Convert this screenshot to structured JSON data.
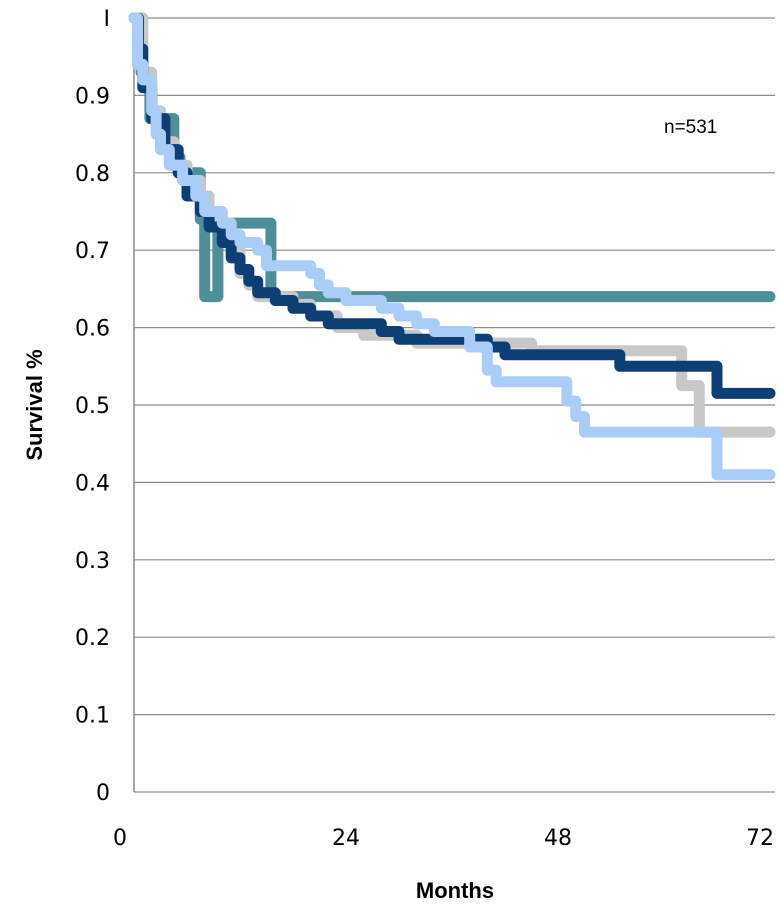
{
  "chart_data": {
    "type": "line",
    "step": true,
    "title": "",
    "xlabel": "Months",
    "ylabel": "Survival %",
    "annotation": "n=531",
    "xlim": [
      0,
      72
    ],
    "ylim": [
      0,
      1
    ],
    "xticks": [
      0,
      24,
      48,
      72
    ],
    "yticks": [
      0,
      0.1,
      0.2,
      0.3,
      0.4,
      0.5,
      0.6,
      0.7,
      0.8,
      0.9,
      1
    ],
    "ytick_labels": [
      "0",
      "0.1",
      "0.2",
      "0.3",
      "0.4",
      "0.5",
      "0.6",
      "0.7",
      "0.8",
      "0.9",
      "I"
    ],
    "xtick_labels": [
      "0",
      "24",
      "48",
      "72"
    ],
    "grid": true,
    "series": [
      {
        "color": "#4e8e99",
        "points": [
          [
            0,
            1
          ],
          [
            0.8,
            1
          ],
          [
            0.8,
            0.93
          ],
          [
            1.8,
            0.93
          ],
          [
            1.8,
            0.87
          ],
          [
            4.5,
            0.87
          ],
          [
            4.5,
            0.82
          ],
          [
            5.2,
            0.82
          ],
          [
            5.2,
            0.8
          ],
          [
            7.5,
            0.8
          ],
          [
            7.5,
            0.74
          ],
          [
            8,
            0.74
          ],
          [
            8,
            0.64
          ],
          [
            9.5,
            0.64
          ],
          [
            9.5,
            0.735
          ],
          [
            15.5,
            0.735
          ],
          [
            15.5,
            0.64
          ],
          [
            72,
            0.64
          ]
        ]
      },
      {
        "color": "#c8c8c8",
        "points": [
          [
            0,
            1
          ],
          [
            1,
            1
          ],
          [
            1,
            0.93
          ],
          [
            2,
            0.93
          ],
          [
            2,
            0.88
          ],
          [
            3,
            0.88
          ],
          [
            3,
            0.84
          ],
          [
            4.5,
            0.84
          ],
          [
            4.5,
            0.81
          ],
          [
            6,
            0.81
          ],
          [
            6,
            0.79
          ],
          [
            7.5,
            0.79
          ],
          [
            7.5,
            0.77
          ],
          [
            8.5,
            0.77
          ],
          [
            8.5,
            0.74
          ],
          [
            10,
            0.74
          ],
          [
            10,
            0.72
          ],
          [
            11,
            0.72
          ],
          [
            11,
            0.7
          ],
          [
            12,
            0.7
          ],
          [
            12,
            0.67
          ],
          [
            13,
            0.67
          ],
          [
            13,
            0.655
          ],
          [
            14,
            0.655
          ],
          [
            14,
            0.64
          ],
          [
            18,
            0.64
          ],
          [
            18,
            0.63
          ],
          [
            20,
            0.63
          ],
          [
            20,
            0.615
          ],
          [
            23,
            0.615
          ],
          [
            23,
            0.6
          ],
          [
            26,
            0.6
          ],
          [
            26,
            0.59
          ],
          [
            32,
            0.59
          ],
          [
            32,
            0.58
          ],
          [
            45,
            0.58
          ],
          [
            45,
            0.57
          ],
          [
            62,
            0.57
          ],
          [
            62,
            0.525
          ],
          [
            64,
            0.525
          ],
          [
            64,
            0.465
          ],
          [
            72,
            0.465
          ]
        ]
      },
      {
        "color": "#0d3f75",
        "points": [
          [
            0,
            1
          ],
          [
            0.5,
            1
          ],
          [
            0.5,
            0.96
          ],
          [
            1,
            0.96
          ],
          [
            1,
            0.91
          ],
          [
            2,
            0.91
          ],
          [
            2,
            0.87
          ],
          [
            3.5,
            0.87
          ],
          [
            3.5,
            0.83
          ],
          [
            5,
            0.83
          ],
          [
            5,
            0.8
          ],
          [
            6,
            0.8
          ],
          [
            6,
            0.77
          ],
          [
            7.5,
            0.77
          ],
          [
            7.5,
            0.75
          ],
          [
            8.5,
            0.75
          ],
          [
            8.5,
            0.73
          ],
          [
            10,
            0.73
          ],
          [
            10,
            0.71
          ],
          [
            11,
            0.71
          ],
          [
            11,
            0.69
          ],
          [
            12,
            0.69
          ],
          [
            12,
            0.675
          ],
          [
            13,
            0.675
          ],
          [
            13,
            0.66
          ],
          [
            14,
            0.66
          ],
          [
            14,
            0.645
          ],
          [
            16,
            0.645
          ],
          [
            16,
            0.635
          ],
          [
            18,
            0.635
          ],
          [
            18,
            0.625
          ],
          [
            20,
            0.625
          ],
          [
            20,
            0.615
          ],
          [
            22,
            0.615
          ],
          [
            22,
            0.605
          ],
          [
            28,
            0.605
          ],
          [
            28,
            0.595
          ],
          [
            30,
            0.595
          ],
          [
            30,
            0.585
          ],
          [
            40,
            0.585
          ],
          [
            40,
            0.575
          ],
          [
            42,
            0.575
          ],
          [
            42,
            0.565
          ],
          [
            55,
            0.565
          ],
          [
            55,
            0.55
          ],
          [
            66,
            0.55
          ],
          [
            66,
            0.515
          ],
          [
            72,
            0.515
          ]
        ]
      },
      {
        "color": "#a9cdf7",
        "points": [
          [
            0,
            1
          ],
          [
            0.4,
            1
          ],
          [
            0.4,
            0.94
          ],
          [
            1,
            0.94
          ],
          [
            1,
            0.92
          ],
          [
            2,
            0.92
          ],
          [
            2,
            0.88
          ],
          [
            2.5,
            0.88
          ],
          [
            2.5,
            0.85
          ],
          [
            3,
            0.85
          ],
          [
            3,
            0.83
          ],
          [
            4,
            0.83
          ],
          [
            4,
            0.81
          ],
          [
            5.5,
            0.81
          ],
          [
            5.5,
            0.79
          ],
          [
            7,
            0.79
          ],
          [
            7,
            0.77
          ],
          [
            8,
            0.77
          ],
          [
            8,
            0.75
          ],
          [
            10,
            0.75
          ],
          [
            10,
            0.735
          ],
          [
            11,
            0.735
          ],
          [
            11,
            0.72
          ],
          [
            12,
            0.72
          ],
          [
            12,
            0.71
          ],
          [
            14,
            0.71
          ],
          [
            14,
            0.7
          ],
          [
            15,
            0.7
          ],
          [
            15,
            0.68
          ],
          [
            20,
            0.68
          ],
          [
            20,
            0.67
          ],
          [
            21,
            0.67
          ],
          [
            21,
            0.655
          ],
          [
            22,
            0.655
          ],
          [
            22,
            0.645
          ],
          [
            24,
            0.645
          ],
          [
            24,
            0.635
          ],
          [
            28,
            0.635
          ],
          [
            28,
            0.625
          ],
          [
            30,
            0.625
          ],
          [
            30,
            0.615
          ],
          [
            32,
            0.615
          ],
          [
            32,
            0.605
          ],
          [
            34,
            0.605
          ],
          [
            34,
            0.595
          ],
          [
            38,
            0.595
          ],
          [
            38,
            0.575
          ],
          [
            40,
            0.575
          ],
          [
            40,
            0.545
          ],
          [
            41,
            0.545
          ],
          [
            41,
            0.53
          ],
          [
            49,
            0.53
          ],
          [
            49,
            0.505
          ],
          [
            50,
            0.505
          ],
          [
            50,
            0.485
          ],
          [
            51,
            0.485
          ],
          [
            51,
            0.465
          ],
          [
            66,
            0.465
          ],
          [
            66,
            0.41
          ],
          [
            72,
            0.41
          ]
        ]
      }
    ]
  }
}
